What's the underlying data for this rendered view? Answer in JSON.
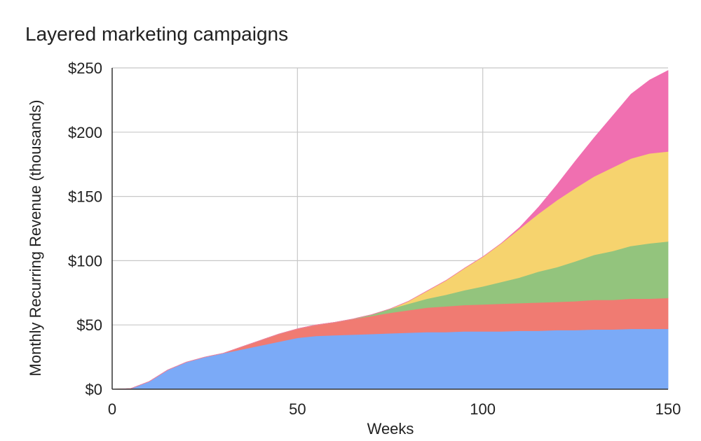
{
  "chart_data": {
    "type": "area",
    "stacked": true,
    "title": "Layered marketing campaigns",
    "xlabel": "Weeks",
    "ylabel": "Monthly Recurring Revenue (thousands)",
    "xlim": [
      0,
      150
    ],
    "ylim": [
      0,
      250
    ],
    "xticks": [
      0,
      50,
      100,
      150
    ],
    "yticks": [
      0,
      50,
      100,
      150,
      200,
      250
    ],
    "xtick_labels": [
      "0",
      "50",
      "100",
      "150"
    ],
    "ytick_labels": [
      "$0",
      "$50",
      "$100",
      "$150",
      "$200",
      "$250"
    ],
    "grid": true,
    "legend": "none",
    "x": [
      0,
      5,
      10,
      15,
      20,
      25,
      30,
      35,
      40,
      45,
      50,
      55,
      60,
      65,
      70,
      75,
      80,
      85,
      90,
      95,
      100,
      105,
      110,
      115,
      120,
      125,
      130,
      135,
      140,
      145,
      150
    ],
    "series": [
      {
        "color": "#7baaf7",
        "values": [
          0,
          0.5,
          6,
          15,
          21,
          25,
          28,
          31,
          34,
          37,
          40,
          41.5,
          42,
          42.5,
          43,
          43.5,
          44,
          44.5,
          44.5,
          45,
          45,
          45,
          45.5,
          45.5,
          46,
          46,
          46.5,
          46.5,
          47,
          47,
          47
        ]
      },
      {
        "color": "#f07b72",
        "values": [
          0,
          0,
          0,
          0,
          0,
          0,
          0,
          2,
          4,
          6,
          7,
          8.5,
          10,
          12,
          14,
          16,
          17.5,
          19,
          20,
          20.5,
          21,
          21.5,
          21.5,
          22,
          22,
          22.5,
          23,
          23,
          23.5,
          23.5,
          24
        ]
      },
      {
        "color": "#93c47d",
        "values": [
          0,
          0,
          0,
          0,
          0,
          0,
          0,
          0,
          0,
          0,
          0,
          0,
          0,
          0.2,
          1,
          3,
          5,
          7,
          9,
          11.5,
          14,
          17,
          20,
          24,
          27,
          31,
          35,
          38,
          41,
          43,
          44
        ]
      },
      {
        "color": "#f6d36e",
        "values": [
          0,
          0,
          0,
          0,
          0,
          0,
          0,
          0,
          0,
          0,
          0,
          0,
          0,
          0,
          0,
          0,
          2,
          6,
          11,
          17,
          23,
          30,
          38,
          45,
          52,
          57,
          61,
          65,
          68,
          70,
          70
        ]
      },
      {
        "color": "#f06fb0",
        "values": [
          0,
          0,
          0,
          0,
          0,
          0,
          0,
          0,
          0,
          0,
          0,
          0,
          0,
          0,
          0,
          0,
          0,
          0,
          0,
          0,
          0,
          0,
          1,
          5,
          12,
          21,
          30,
          40,
          50,
          57,
          63
        ]
      }
    ]
  }
}
